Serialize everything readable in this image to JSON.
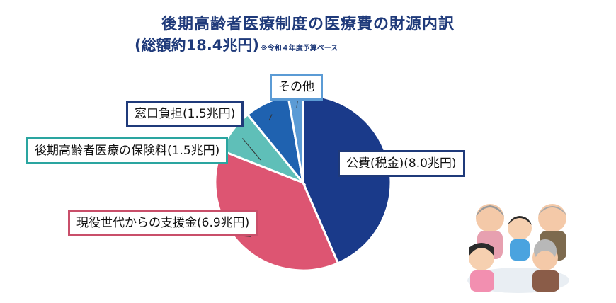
{
  "title_line1": "後期高齢者医療制度の医療費の財源内訳",
  "title_line2": "(総額約18.4兆円)",
  "title_note": "※令和４年度予算ベース",
  "chart_data": {
    "type": "pie",
    "title": "後期高齢者医療制度の医療費の財源内訳",
    "subtitle": "(総額約18.4兆円)",
    "unit": "兆円",
    "categories": [
      "公費(税金)",
      "現役世代からの支援金",
      "後期高齢者医療の保険料",
      "窓口負担",
      "その他"
    ],
    "values": [
      8.0,
      6.9,
      1.5,
      1.5,
      0.5
    ],
    "labels": [
      "公費(税金)(8.0兆円)",
      "現役世代からの支援金(6.9兆円)",
      "後期高齢者医療の保険料(1.5兆円)",
      "窓口負担(1.5兆円)",
      "その他"
    ],
    "colors": [
      "#1a3a8a",
      "#dd5572",
      "#5fbfb8",
      "#1f62b0",
      "#5b9bd5"
    ],
    "edge_colors": [
      "#ffffff",
      "#ffffff",
      "#ffffff",
      "#ffffff",
      "#ffffff"
    ]
  },
  "illustration": {
    "icon": "elderly-and-children-group-illustration"
  }
}
